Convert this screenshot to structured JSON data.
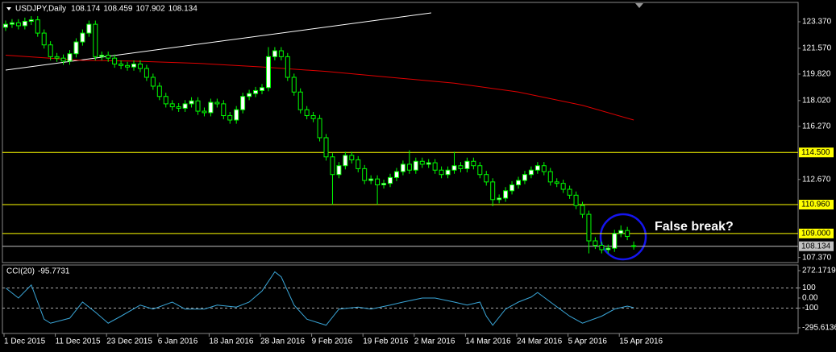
{
  "chart_data": [
    {
      "type": "candlestick",
      "title": "USDJPY,Daily",
      "ohlc": [
        [
          123.0,
          123.45,
          122.75,
          123.2
        ],
        [
          123.2,
          123.55,
          122.95,
          123.3
        ],
        [
          123.3,
          123.55,
          122.85,
          123.1
        ],
        [
          123.1,
          123.65,
          122.85,
          123.4
        ],
        [
          123.4,
          123.75,
          123.15,
          123.5
        ],
        [
          123.5,
          123.75,
          122.35,
          122.6
        ],
        [
          122.6,
          122.85,
          121.55,
          121.8
        ],
        [
          121.8,
          122.05,
          120.75,
          121.0
        ],
        [
          121.0,
          121.25,
          120.65,
          120.9
        ],
        [
          120.9,
          121.15,
          120.45,
          120.7
        ],
        [
          120.7,
          121.45,
          120.45,
          121.2
        ],
        [
          121.2,
          122.25,
          120.95,
          122.0
        ],
        [
          122.0,
          122.85,
          121.75,
          122.6
        ],
        [
          122.6,
          123.45,
          122.35,
          123.2
        ],
        [
          123.2,
          123.45,
          120.75,
          121.0
        ],
        [
          121.0,
          121.35,
          120.75,
          121.1
        ],
        [
          121.1,
          121.35,
          120.65,
          120.9
        ],
        [
          120.9,
          121.15,
          120.25,
          120.5
        ],
        [
          120.5,
          120.75,
          120.15,
          120.4
        ],
        [
          120.4,
          120.65,
          120.05,
          120.3
        ],
        [
          120.3,
          120.75,
          120.05,
          120.5
        ],
        [
          120.5,
          120.75,
          119.95,
          120.2
        ],
        [
          120.2,
          120.45,
          119.35,
          119.6
        ],
        [
          119.6,
          119.85,
          118.75,
          119.0
        ],
        [
          119.0,
          119.25,
          118.05,
          118.3
        ],
        [
          118.3,
          118.55,
          117.55,
          117.8
        ],
        [
          117.8,
          118.05,
          117.35,
          117.6
        ],
        [
          117.6,
          117.85,
          117.25,
          117.5
        ],
        [
          117.5,
          118.05,
          117.25,
          117.8
        ],
        [
          117.8,
          118.25,
          117.55,
          118.0
        ],
        [
          118.0,
          118.25,
          117.05,
          117.3
        ],
        [
          117.3,
          117.55,
          116.95,
          117.2
        ],
        [
          117.2,
          118.15,
          116.95,
          117.9
        ],
        [
          117.9,
          118.15,
          117.55,
          117.8
        ],
        [
          117.8,
          118.05,
          116.75,
          117.0
        ],
        [
          117.0,
          117.25,
          116.45,
          116.7
        ],
        [
          116.7,
          117.65,
          116.45,
          117.4
        ],
        [
          117.4,
          118.55,
          117.15,
          118.3
        ],
        [
          118.3,
          118.75,
          118.05,
          118.5
        ],
        [
          118.5,
          118.95,
          118.25,
          118.7
        ],
        [
          118.7,
          119.15,
          118.45,
          118.9
        ],
        [
          118.9,
          121.65,
          118.65,
          121.0
        ],
        [
          121.0,
          121.65,
          120.75,
          121.4
        ],
        [
          121.4,
          121.65,
          120.75,
          121.0
        ],
        [
          121.0,
          121.25,
          119.35,
          119.6
        ],
        [
          119.6,
          119.85,
          118.35,
          118.6
        ],
        [
          118.6,
          118.85,
          117.15,
          117.4
        ],
        [
          117.4,
          117.65,
          116.75,
          117.0
        ],
        [
          117.0,
          117.25,
          116.55,
          116.8
        ],
        [
          116.8,
          117.05,
          115.25,
          115.5
        ],
        [
          115.5,
          115.75,
          113.95,
          114.2
        ],
        [
          114.2,
          114.45,
          110.95,
          113.0
        ],
        [
          113.0,
          113.85,
          112.75,
          113.6
        ],
        [
          113.6,
          114.55,
          113.35,
          114.3
        ],
        [
          114.3,
          114.55,
          113.75,
          114.0
        ],
        [
          114.0,
          114.25,
          113.15,
          113.4
        ],
        [
          113.4,
          113.65,
          112.35,
          112.6
        ],
        [
          112.6,
          112.95,
          112.35,
          112.7
        ],
        [
          112.7,
          112.95,
          110.95,
          112.3
        ],
        [
          112.3,
          112.65,
          112.05,
          112.4
        ],
        [
          112.4,
          113.05,
          112.15,
          112.8
        ],
        [
          112.8,
          113.45,
          112.55,
          113.2
        ],
        [
          113.2,
          113.95,
          112.95,
          113.7
        ],
        [
          113.7,
          114.65,
          113.05,
          113.3
        ],
        [
          113.3,
          114.15,
          113.05,
          113.9
        ],
        [
          113.9,
          114.15,
          113.45,
          113.7
        ],
        [
          113.7,
          114.05,
          113.45,
          113.8
        ],
        [
          113.8,
          114.05,
          113.05,
          113.3
        ],
        [
          113.3,
          113.55,
          112.75,
          113.0
        ],
        [
          113.0,
          113.55,
          112.75,
          113.3
        ],
        [
          113.3,
          114.55,
          113.05,
          113.6
        ],
        [
          113.6,
          113.85,
          113.15,
          113.4
        ],
        [
          113.4,
          114.15,
          113.15,
          113.9
        ],
        [
          113.9,
          114.15,
          113.35,
          113.6
        ],
        [
          113.6,
          113.85,
          112.75,
          113.0
        ],
        [
          113.0,
          113.25,
          112.25,
          112.5
        ],
        [
          112.5,
          112.75,
          110.85,
          111.3
        ],
        [
          111.3,
          111.65,
          111.05,
          111.4
        ],
        [
          111.4,
          112.15,
          111.15,
          111.9
        ],
        [
          111.9,
          112.55,
          111.65,
          112.3
        ],
        [
          112.3,
          112.85,
          112.05,
          112.6
        ],
        [
          112.6,
          113.25,
          112.35,
          113.0
        ],
        [
          113.0,
          113.55,
          112.75,
          113.3
        ],
        [
          113.3,
          113.85,
          113.05,
          113.6
        ],
        [
          113.6,
          113.85,
          112.95,
          113.2
        ],
        [
          113.2,
          113.45,
          112.25,
          112.5
        ],
        [
          112.5,
          112.75,
          112.15,
          112.4
        ],
        [
          112.4,
          112.65,
          111.75,
          112.0
        ],
        [
          112.0,
          112.25,
          111.35,
          111.6
        ],
        [
          111.6,
          111.85,
          110.65,
          110.9
        ],
        [
          110.9,
          111.15,
          110.05,
          110.3
        ],
        [
          110.3,
          110.55,
          107.65,
          108.5
        ],
        [
          108.5,
          108.75,
          107.95,
          108.2
        ],
        [
          108.2,
          108.45,
          107.65,
          107.9
        ],
        [
          107.9,
          108.25,
          107.65,
          108.0
        ],
        [
          108.0,
          109.25,
          107.75,
          109.0
        ],
        [
          109.0,
          109.55,
          108.75,
          109.2
        ],
        [
          109.2,
          109.45,
          108.55,
          108.8
        ],
        [
          108.174,
          108.459,
          107.902,
          108.134
        ]
      ],
      "up_color": "#ffffff",
      "down_color": "#000000",
      "wick_color": "#00ff00",
      "ylim": [
        107.08,
        124.3
      ],
      "yticks": [
        {
          "value": 123.37,
          "label": "123.370"
        },
        {
          "value": 121.57,
          "label": "121.570"
        },
        {
          "value": 119.82,
          "label": "119.820"
        },
        {
          "value": 118.02,
          "label": "118.020"
        },
        {
          "value": 116.27,
          "label": "116.270"
        },
        {
          "value": 112.67,
          "label": "112.670"
        },
        {
          "value": 107.37,
          "label": "107.370"
        }
      ],
      "levels": [
        {
          "value": 114.5,
          "label": "114.500",
          "color": "#ffff00"
        },
        {
          "value": 110.96,
          "label": "110.960",
          "color": "#ffff00"
        },
        {
          "value": 109.0,
          "label": "109.000",
          "color": "#ffff00"
        }
      ],
      "current_price": {
        "value": 108.134,
        "label": "108.134",
        "color": "#c0c0c0"
      },
      "ma": {
        "color": "#e00000",
        "x": [
          0,
          12,
          20,
          30,
          40,
          50,
          60,
          70,
          80,
          90,
          98
        ],
        "values": [
          121.1,
          120.75,
          120.7,
          120.55,
          120.3,
          120.0,
          119.6,
          119.2,
          118.6,
          117.7,
          116.7
        ]
      },
      "trendline": {
        "color": "#ffffff",
        "x": [
          0,
          66.4
        ],
        "values": [
          120.09,
          123.97
        ]
      },
      "annotation": "False break?"
    },
    {
      "type": "line",
      "title": "CCI(20)",
      "color": "#3aa6d8",
      "x": [
        0,
        2,
        4,
        6,
        7,
        10,
        12,
        14,
        16,
        18,
        21,
        23,
        26,
        28,
        31,
        33,
        36,
        38,
        40,
        42,
        43,
        45,
        47,
        50,
        52,
        55,
        57,
        60,
        62,
        65,
        67,
        70,
        72,
        74,
        75,
        76,
        78,
        80,
        82,
        83,
        85,
        88,
        90,
        93,
        95,
        97,
        98
      ],
      "values": [
        100,
        0,
        130,
        -210,
        -250,
        -200,
        -40,
        -140,
        -250,
        -180,
        -70,
        -110,
        -40,
        -110,
        -110,
        -70,
        -90,
        -40,
        70,
        260,
        210,
        -70,
        -210,
        -270,
        -110,
        -90,
        -110,
        -70,
        -40,
        0,
        0,
        -40,
        -70,
        -40,
        -180,
        -270,
        -110,
        -40,
        10,
        55,
        -40,
        -180,
        -250,
        -180,
        -110,
        -80,
        -95.7731
      ],
      "ylim": [
        -344,
        320
      ],
      "yticks": [
        272.1719,
        100,
        {
          "value": 0,
          "label": "0.00"
        },
        -100,
        -295.6136
      ],
      "levels": [
        100,
        -100
      ],
      "xticks": [
        {
          "value": 0,
          "label": "1 Dec 2015"
        },
        {
          "value": 8,
          "label": "11 Dec 2015"
        },
        {
          "value": 16,
          "label": "23 Dec 2015"
        },
        {
          "value": 24,
          "label": "6 Jan 2016"
        },
        {
          "value": 32,
          "label": "18 Jan 2016"
        },
        {
          "value": 40,
          "label": "28 Jan 2016"
        },
        {
          "value": 48,
          "label": "9 Feb 2016"
        },
        {
          "value": 56,
          "label": "19 Feb 2016"
        },
        {
          "value": 64,
          "label": "2 Mar 2016"
        },
        {
          "value": 72,
          "label": "14 Mar 2016"
        },
        {
          "value": 80,
          "label": "24 Mar 2016"
        },
        {
          "value": 88,
          "label": "5 Apr 2016"
        },
        {
          "value": 96,
          "label": "15 Apr 2016"
        }
      ]
    }
  ]
}
